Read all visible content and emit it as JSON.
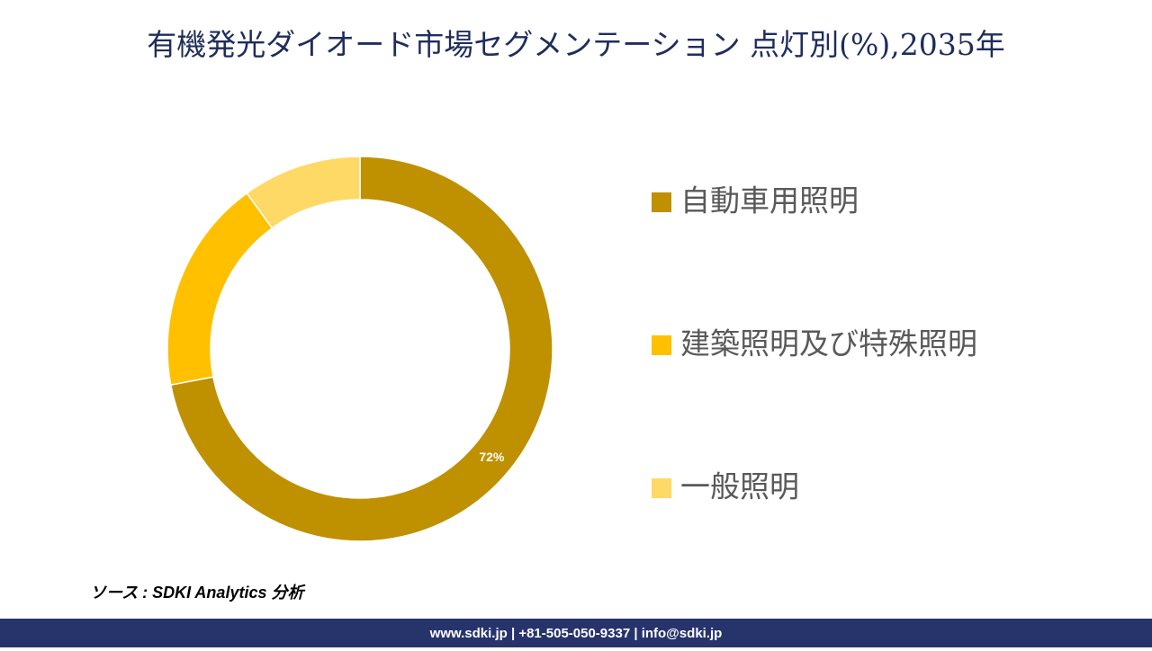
{
  "chart_data": {
    "type": "donut",
    "title": "有機発光ダイオード市場セグメンテーション 点灯別(%),2035年",
    "categories": [
      "自動車用照明",
      "建築照明及び特殊照明",
      "一般照明"
    ],
    "values": [
      72,
      18,
      10
    ],
    "value_labels": [
      "72%",
      null,
      null
    ],
    "colors": [
      "#bf9000",
      "#ffc000",
      "#ffd966"
    ],
    "legend": "right"
  },
  "source": "ソース : SDKI Analytics 分析",
  "footer": "www.sdki.jp | +81-505-050-9337 | info@sdki.jp"
}
